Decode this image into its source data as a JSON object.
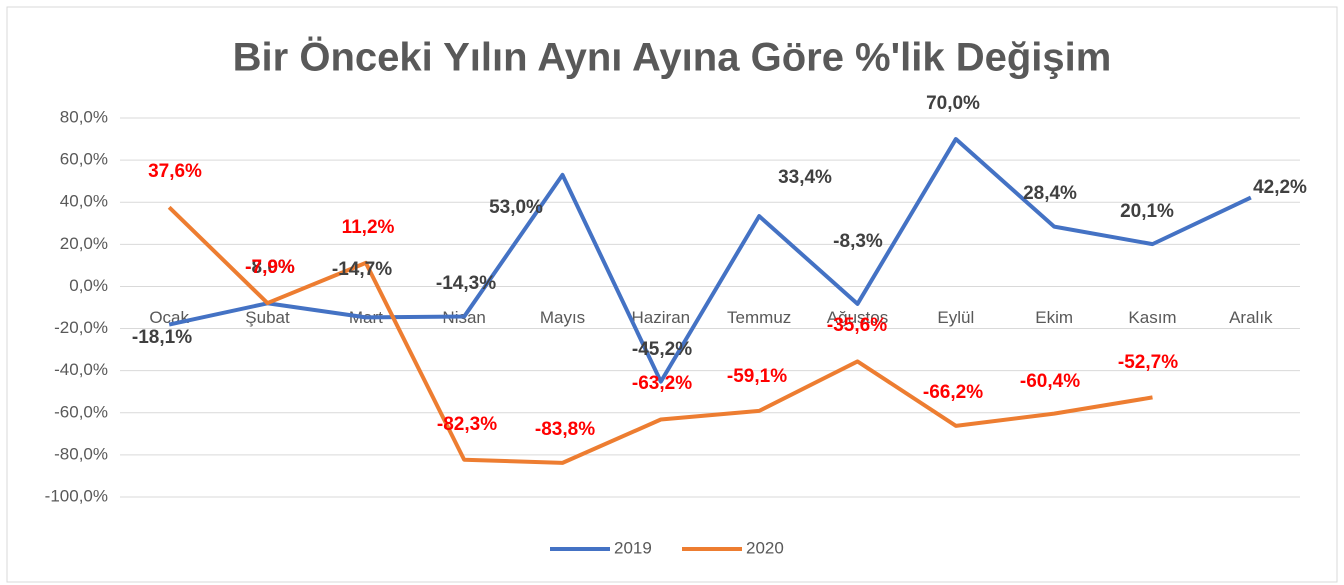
{
  "chart_data": {
    "type": "line",
    "title": "Bir Önceki Yılın Aynı Ayına Göre %'lik Değişim",
    "categories": [
      "Ocak",
      "Şubat",
      "Mart",
      "Nisan",
      "Mayıs",
      "Haziran",
      "Temmuz",
      "Ağustos",
      "Eylül",
      "Ekim",
      "Kasım",
      "Aralık"
    ],
    "series": [
      {
        "name": "2019",
        "color": "#4472c4",
        "values": [
          -18.1,
          -8.0,
          -14.7,
          -14.3,
          53.0,
          -45.2,
          33.4,
          -8.3,
          70.0,
          28.4,
          20.1,
          42.2
        ],
        "value_labels": [
          "-18,1%",
          "-8,0%",
          "-14,7%",
          "-14,3%",
          "53,0%",
          "-45,2%",
          "33,4%",
          "-8,3%",
          "70,0%",
          "28,4%",
          "20,1%",
          "42,2%"
        ]
      },
      {
        "name": "2020",
        "color": "#ed7d31",
        "values": [
          37.6,
          -7.9,
          11.2,
          -82.3,
          -83.8,
          -63.2,
          -59.1,
          -35.6,
          -66.2,
          -60.4,
          -52.7,
          null
        ],
        "value_labels": [
          "37,6%",
          "-7,9%",
          "11,2%",
          "-82,3%",
          "-83,8%",
          "-63,2%",
          "-59,1%",
          "-35,6%",
          "-66,2%",
          "-60,4%",
          "-52,7%",
          null
        ]
      }
    ],
    "ylim": [
      -100,
      80
    ],
    "yticks": [
      {
        "value": -100,
        "label": "-100,0%"
      },
      {
        "value": -80,
        "label": "-80,0%"
      },
      {
        "value": -60,
        "label": "-60,0%"
      },
      {
        "value": -40,
        "label": "-40,0%"
      },
      {
        "value": -20,
        "label": "-20,0%"
      },
      {
        "value": 0,
        "label": "0,0%"
      },
      {
        "value": 20,
        "label": "20,0%"
      },
      {
        "value": 40,
        "label": "40,0%"
      },
      {
        "value": 60,
        "label": "60,0%"
      },
      {
        "value": 80,
        "label": "80,0%"
      }
    ],
    "grid": true,
    "legend": "bottom"
  }
}
